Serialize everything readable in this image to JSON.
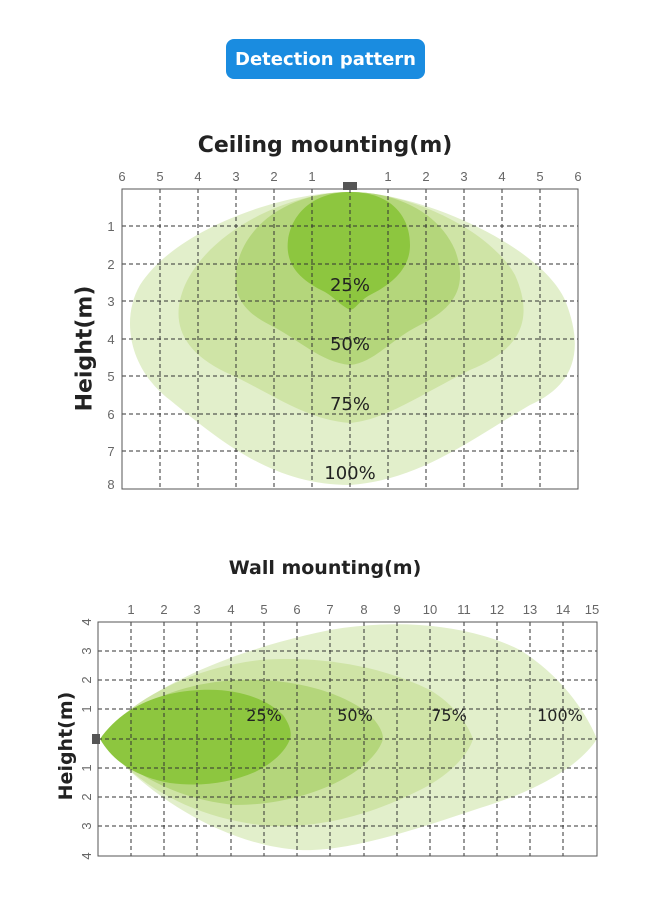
{
  "header": {
    "badge_label": "Detection pattern",
    "badge_color": "#1a8ce0"
  },
  "ceiling": {
    "title": "Ceiling mounting(m)",
    "ylabel": "Height(m)",
    "x_ticks": [
      "6",
      "5",
      "4",
      "3",
      "2",
      "1",
      "1",
      "2",
      "3",
      "4",
      "5",
      "6"
    ],
    "y_ticks": [
      "1",
      "2",
      "3",
      "4",
      "5",
      "6",
      "7",
      "8"
    ],
    "zones": [
      "100%",
      "75%",
      "50%",
      "25%"
    ]
  },
  "wall": {
    "title": "Wall mounting(m)",
    "ylabel": "Height(m)",
    "x_ticks": [
      "1",
      "2",
      "3",
      "4",
      "5",
      "6",
      "7",
      "8",
      "9",
      "10",
      "11",
      "12",
      "13",
      "14",
      "15"
    ],
    "y_ticks_upper": [
      "4",
      "3",
      "2",
      "1"
    ],
    "y_ticks_lower": [
      "1",
      "2",
      "3",
      "4"
    ],
    "zones": [
      "25%",
      "50%",
      "75%",
      "100%"
    ]
  },
  "colors": {
    "zone_100": "#e2efcb",
    "zone_75": "#cfe4a6",
    "zone_50": "#b4d67b",
    "zone_25": "#8dc63f"
  }
}
